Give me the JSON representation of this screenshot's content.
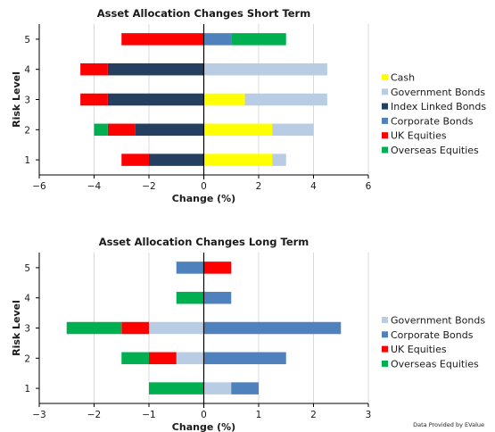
{
  "chart_data": [
    {
      "type": "bar",
      "orientation": "horizontal",
      "stacked": "diverging",
      "title": "Asset Allocation Changes Short Term",
      "xlabel": "Change (%)",
      "ylabel": "Risk Level",
      "categories": [
        "1",
        "2",
        "3",
        "4",
        "5"
      ],
      "xlim": [
        -6,
        6
      ],
      "xticks": [
        -6,
        -4,
        -2,
        0,
        2,
        4,
        6
      ],
      "grid": true,
      "legend_position": "right",
      "series": [
        {
          "name": "Cash",
          "color": "#ffff00",
          "values": [
            2.5,
            2.5,
            1.5,
            0,
            0
          ]
        },
        {
          "name": "Government Bonds",
          "color": "#b8cce4",
          "values": [
            0.5,
            1.5,
            3.0,
            4.5,
            0
          ]
        },
        {
          "name": "Index Linked Bonds",
          "color": "#243f60",
          "values": [
            -2.0,
            -2.5,
            -3.5,
            -3.5,
            0
          ]
        },
        {
          "name": "Corporate Bonds",
          "color": "#4f81bd",
          "values": [
            0,
            0,
            0,
            0,
            1.0
          ]
        },
        {
          "name": "UK Equities",
          "color": "#ff0000",
          "values": [
            -1.0,
            -1.0,
            -1.0,
            -1.0,
            -3.0
          ]
        },
        {
          "name": "Overseas Equities",
          "color": "#00b050",
          "values": [
            0,
            -0.5,
            0,
            0,
            2.0
          ]
        }
      ]
    },
    {
      "type": "bar",
      "orientation": "horizontal",
      "stacked": "diverging",
      "title": "Asset Allocation Changes Long Term",
      "xlabel": "Change (%)",
      "ylabel": "Risk Level",
      "categories": [
        "1",
        "2",
        "3",
        "4",
        "5"
      ],
      "xlim": [
        -3,
        3
      ],
      "xticks": [
        -3,
        -2,
        -1,
        0,
        1,
        2,
        3
      ],
      "grid": true,
      "legend_position": "right",
      "series": [
        {
          "name": "Government Bonds",
          "color": "#b8cce4",
          "values": [
            0.5,
            -0.5,
            -1.0,
            0,
            0
          ]
        },
        {
          "name": "Corporate Bonds",
          "color": "#4f81bd",
          "values": [
            0.5,
            1.5,
            2.5,
            0.5,
            -0.5
          ]
        },
        {
          "name": "UK Equities",
          "color": "#ff0000",
          "values": [
            0,
            -0.5,
            -0.5,
            0,
            0.5
          ]
        },
        {
          "name": "Overseas Equities",
          "color": "#00b050",
          "values": [
            -1.0,
            -0.5,
            -1.0,
            -0.5,
            0
          ]
        }
      ]
    }
  ],
  "credit": "Data Provided by EValue"
}
